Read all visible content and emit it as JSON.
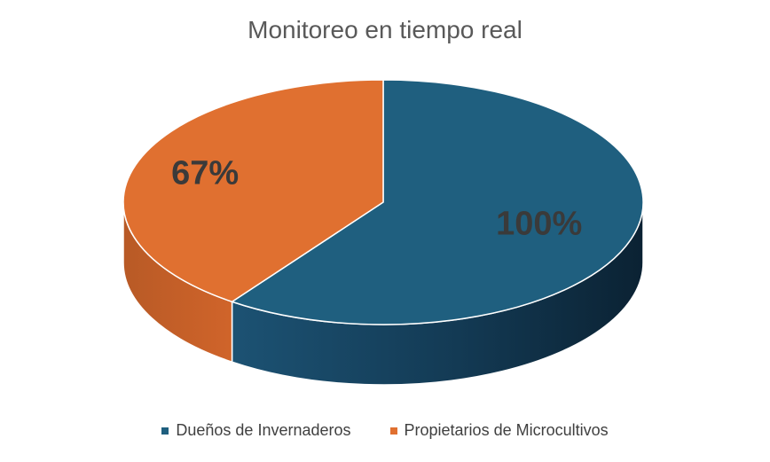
{
  "chart_data": {
    "type": "pie",
    "title": "Monitoreo en tiempo real",
    "categories": [
      "Dueños de Invernaderos",
      "Propietarios de Microcultivos"
    ],
    "values": [
      100,
      67
    ],
    "data_labels": [
      "100%",
      "67%"
    ],
    "colors": [
      "#1f5f7f",
      "#e07030"
    ],
    "style": "3d",
    "legend_position": "bottom"
  }
}
